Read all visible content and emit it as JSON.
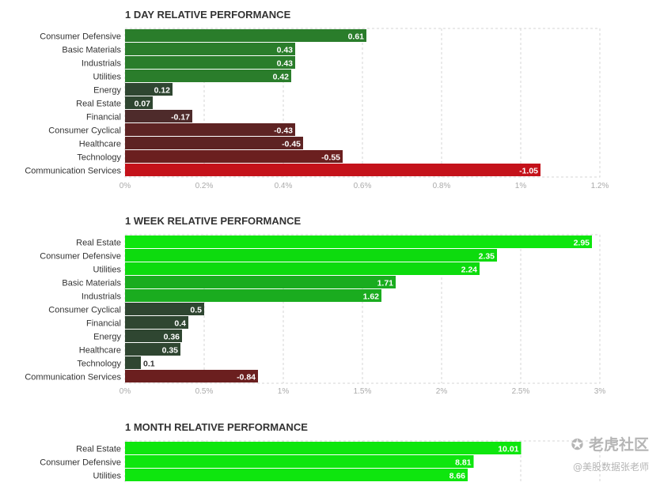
{
  "chart_data": [
    {
      "type": "bar",
      "orientation": "horizontal",
      "title": "1 DAY RELATIVE PERFORMANCE",
      "categories": [
        "Consumer Defensive",
        "Basic Materials",
        "Industrials",
        "Utilities",
        "Energy",
        "Real Estate",
        "Financial",
        "Consumer Cyclical",
        "Healthcare",
        "Technology",
        "Communication Services"
      ],
      "values": [
        0.61,
        0.43,
        0.43,
        0.42,
        0.12,
        0.07,
        -0.17,
        -0.43,
        -0.45,
        -0.55,
        -1.05
      ],
      "value_labels": [
        "0.61",
        "0.43",
        "0.43",
        "0.42",
        "0.12",
        "0.07",
        "-0.17",
        "-0.43",
        "-0.45",
        "-0.55",
        "-1.05"
      ],
      "colors": [
        "#2a7d2b",
        "#2a7d2b",
        "#2a7d2b",
        "#2a7d2b",
        "#2f4631",
        "#2f4631",
        "#4e2b2b",
        "#5e2323",
        "#5e2323",
        "#6b1f1f",
        "#c4121a"
      ],
      "xlim": [
        0,
        1.2
      ],
      "ticks": [
        0,
        0.2,
        0.4,
        0.6,
        0.8,
        1,
        1.2
      ],
      "tick_labels": [
        "0%",
        "0.2%",
        "0.4%",
        "0.6%",
        "0.8%",
        "1%",
        "1.2%"
      ],
      "grid": true
    },
    {
      "type": "bar",
      "orientation": "horizontal",
      "title": "1 WEEK RELATIVE PERFORMANCE",
      "categories": [
        "Real Estate",
        "Consumer Defensive",
        "Utilities",
        "Basic Materials",
        "Industrials",
        "Consumer Cyclical",
        "Financial",
        "Energy",
        "Healthcare",
        "Technology",
        "Communication Services"
      ],
      "values": [
        2.95,
        2.35,
        2.24,
        1.71,
        1.62,
        0.5,
        0.4,
        0.36,
        0.35,
        0.1,
        -0.84
      ],
      "value_labels": [
        "2.95",
        "2.35",
        "2.24",
        "1.71",
        "1.62",
        "0.5",
        "0.4",
        "0.36",
        "0.35",
        "0.1",
        "-0.84"
      ],
      "colors": [
        "#0ee60e",
        "#0ddb0e",
        "#0ddb0e",
        "#1aac1f",
        "#1aac1f",
        "#2f4631",
        "#2f4631",
        "#2f4631",
        "#2f4631",
        "#2f4631",
        "#6b1f1f"
      ],
      "xlim": [
        0,
        3
      ],
      "ticks": [
        0,
        0.5,
        1,
        1.5,
        2,
        2.5,
        3
      ],
      "tick_labels": [
        "0%",
        "0.5%",
        "1%",
        "1.5%",
        "2%",
        "2.5%",
        "3%"
      ],
      "grid": true
    },
    {
      "type": "bar",
      "orientation": "horizontal",
      "title": "1 MONTH RELATIVE PERFORMANCE",
      "categories": [
        "Real Estate",
        "Consumer Defensive",
        "Utilities"
      ],
      "values": [
        10.01,
        8.81,
        8.66
      ],
      "value_labels": [
        "10.01",
        "8.81",
        "8.66"
      ],
      "colors": [
        "#0ee60e",
        "#0ee60e",
        "#0ee60e"
      ],
      "xlim": [
        0,
        12
      ],
      "grid": true
    }
  ],
  "watermark": {
    "brand": "老虎社区",
    "author": "@美股数据张老师"
  }
}
